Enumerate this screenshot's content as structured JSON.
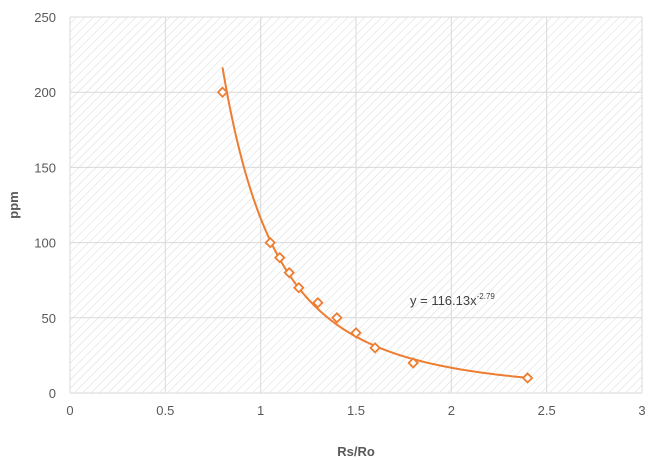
{
  "chart_data": {
    "type": "scatter",
    "title": "",
    "xlabel": "Rs/Ro",
    "ylabel": "ppm",
    "xlim": [
      0,
      3
    ],
    "ylim": [
      0,
      250
    ],
    "x_ticks": [
      0,
      0.5,
      1,
      1.5,
      2,
      2.5,
      3
    ],
    "y_ticks": [
      0,
      50,
      100,
      150,
      200,
      250
    ],
    "x_tick_labels": [
      "0",
      "0.5",
      "1",
      "1.5",
      "2",
      "2.5",
      "3"
    ],
    "y_tick_labels": [
      "0",
      "50",
      "100",
      "150",
      "200",
      "250"
    ],
    "grid": true,
    "legend": "none",
    "marker_color": "#ED7D31",
    "trendline_color": "#ED7D31",
    "series": [
      {
        "points": [
          {
            "x": 0.8,
            "y": 200
          },
          {
            "x": 1.05,
            "y": 100
          },
          {
            "x": 1.1,
            "y": 90
          },
          {
            "x": 1.15,
            "y": 80
          },
          {
            "x": 1.2,
            "y": 70
          },
          {
            "x": 1.3,
            "y": 60
          },
          {
            "x": 1.4,
            "y": 50
          },
          {
            "x": 1.5,
            "y": 40
          },
          {
            "x": 1.6,
            "y": 30
          },
          {
            "x": 1.8,
            "y": 20
          },
          {
            "x": 2.4,
            "y": 10
          }
        ]
      }
    ],
    "trendline": {
      "type": "power",
      "coefficient": 116.13,
      "exponent": -2.79,
      "x_range": [
        0.8,
        2.4
      ],
      "equation_prefix": "y = 116.13x",
      "equation_exponent": "-2.79"
    }
  }
}
